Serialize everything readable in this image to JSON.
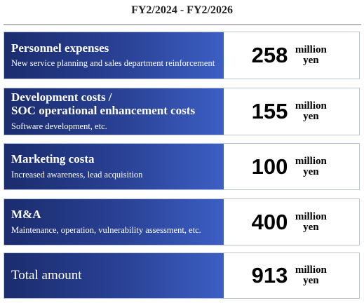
{
  "header": {
    "title": "FY2/2024 - FY2/2026"
  },
  "rows": [
    {
      "title": "Personnel expenses",
      "description": "New service planning and sales department reinforcement",
      "amount": "258",
      "unit": "million yen"
    },
    {
      "title": "Development costs /\nSOC operational enhancement costs",
      "description": "Software development, etc.",
      "amount": "155",
      "unit": "million yen"
    },
    {
      "title": "Marketing costa",
      "description": "Increased awareness, lead acquisition",
      "amount": "100",
      "unit": "million yen"
    },
    {
      "title": "M&A",
      "description": "Maintenance, operation, vulnerability assessment, etc.",
      "amount": "400",
      "unit": "million yen"
    }
  ],
  "total": {
    "title": "Total amount",
    "amount": "913",
    "unit": "million yen"
  }
}
